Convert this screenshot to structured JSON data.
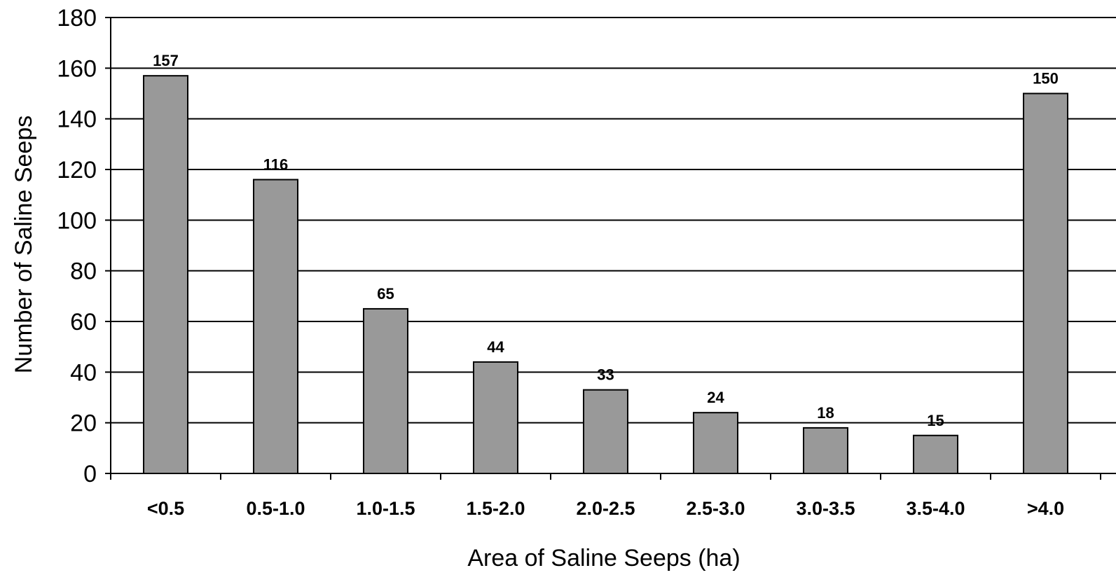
{
  "chart_data": {
    "type": "bar",
    "xlabel": "Area of Saline Seeps (ha)",
    "ylabel": "Number of Saline Seeps",
    "categories": [
      "<0.5",
      "0.5-1.0",
      "1.0-1.5",
      "1.5-2.0",
      "2.0-2.5",
      "2.5-3.0",
      "3.0-3.5",
      "3.5-4.0",
      ">4.0"
    ],
    "values": [
      157,
      116,
      65,
      44,
      33,
      24,
      18,
      15,
      150
    ],
    "data_labels": [
      "157",
      "116",
      "65",
      "44",
      "33",
      "24",
      "18",
      "15",
      "150"
    ],
    "ylim": [
      0,
      180
    ],
    "yticks": [
      0,
      20,
      40,
      60,
      80,
      100,
      120,
      140,
      160,
      180
    ],
    "ytick_labels": [
      "0",
      "20",
      "40",
      "60",
      "80",
      "100",
      "120",
      "140",
      "160",
      "180"
    ],
    "grid": true,
    "legend": "none",
    "bar_color": "#999999",
    "bar_edge_color": "#000000",
    "grid_color": "#000000"
  }
}
